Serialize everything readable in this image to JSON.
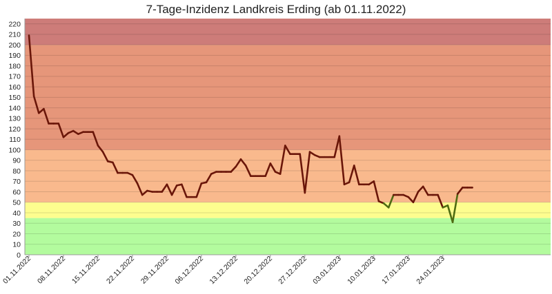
{
  "chart_data": {
    "type": "line",
    "title": "7-Tage-Inzidenz Landkreis Erding (ab 01.11.2022)",
    "xlabel": "",
    "ylabel": "",
    "ylim": [
      0,
      225
    ],
    "yticks": [
      0,
      10,
      20,
      30,
      40,
      50,
      60,
      70,
      80,
      90,
      100,
      110,
      120,
      130,
      140,
      150,
      160,
      170,
      180,
      190,
      200,
      210,
      220
    ],
    "x_tick_labels": [
      "01.11.2022",
      "08.11.2022",
      "15.11.2022",
      "22.11.2022",
      "29.11.2022",
      "06.12.2022",
      "13.12.2022",
      "20.12.2022",
      "27.12.2022",
      "03.01.2023",
      "10.01.2023",
      "17.01.2023",
      "24.01.2023"
    ],
    "grid": true,
    "background_bands": [
      {
        "from": 0,
        "to": 35,
        "color": "#b3fb9e"
      },
      {
        "from": 35,
        "to": 50,
        "color": "#fdfd8f"
      },
      {
        "from": 50,
        "to": 100,
        "color": "#f9b98d"
      },
      {
        "from": 100,
        "to": 200,
        "color": "#e6967a"
      },
      {
        "from": 200,
        "to": 225,
        "color": "#cd7c79"
      }
    ],
    "colors": {
      "line_high": "#6a1609",
      "line_low": "#4e6b12"
    },
    "low_threshold": 50,
    "series": [
      {
        "values": [
          209,
          151,
          135,
          139,
          125,
          125,
          125,
          112,
          116,
          118,
          115,
          117,
          117,
          117,
          104,
          98,
          89,
          88,
          78,
          78,
          78,
          76,
          68,
          57,
          61,
          60,
          60,
          60,
          67,
          57,
          66,
          67,
          55,
          55,
          55,
          68,
          69,
          77,
          79,
          79,
          79,
          79,
          84,
          91,
          85,
          75,
          75,
          75,
          75,
          87,
          79,
          77,
          104,
          96,
          96,
          96,
          59,
          98,
          95,
          93,
          93,
          93,
          93,
          113,
          67,
          69,
          85,
          67,
          67,
          67,
          70,
          51,
          49,
          45,
          57,
          57,
          57,
          55,
          50,
          60,
          65,
          57,
          57,
          57,
          45,
          47,
          31,
          58,
          64,
          64,
          64
        ]
      }
    ]
  }
}
